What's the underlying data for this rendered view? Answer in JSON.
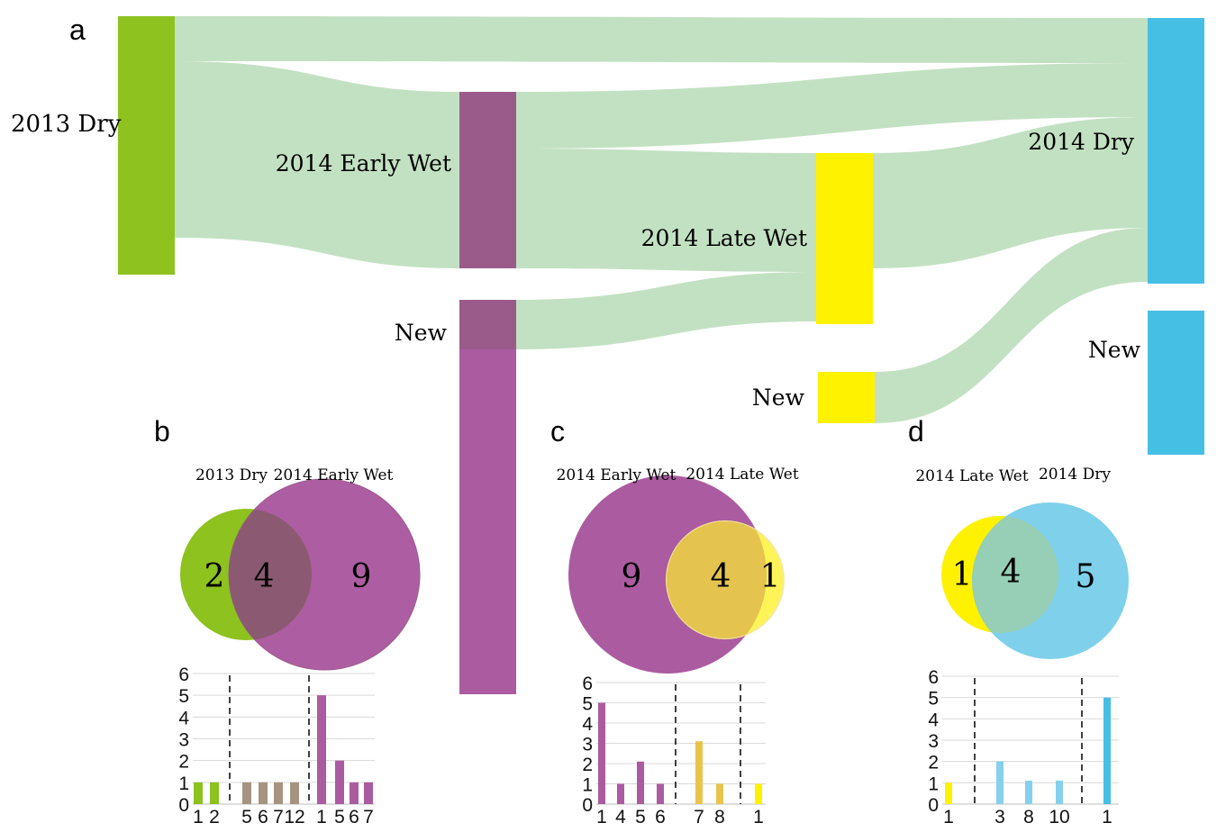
{
  "colors": {
    "flow": "#c2e1c2",
    "dry2013": "#8dc21f",
    "earlywet": "#9a5b8a",
    "earlywet_new": "#ab5ba0",
    "latewet": "#fff200",
    "dry2014": "#45bfe4",
    "tan": "#a69480",
    "gold": "#e8c44c",
    "sky": "#85d0ec",
    "grid": "#d9d9d9"
  },
  "panel_a": {
    "letter": "a",
    "nodes": {
      "dry2013": "2013 Dry",
      "earlywet": "2014 Early Wet",
      "earlywet_new": "New",
      "latewet": "2014 Late Wet",
      "latewet_new": "New",
      "dry2014": "2014 Dry",
      "dry2014_new": "New"
    }
  },
  "panel_b": {
    "letter": "b",
    "left_label": "2013 Dry",
    "right_label": "2014 Early Wet",
    "left_only": "2",
    "shared": "4",
    "right_only": "9"
  },
  "panel_c": {
    "letter": "c",
    "left_label": "2014 Early Wet",
    "right_label": "2014 Late Wet",
    "left_only": "9",
    "shared": "4",
    "right_only": "1"
  },
  "panel_d": {
    "letter": "d",
    "left_label": "2014 Late Wet",
    "right_label": "2014 Dry",
    "left_only": "1",
    "shared": "4",
    "right_only": "5"
  },
  "chart_data": [
    {
      "type": "bar",
      "panel": "b",
      "ylim": [
        0,
        6
      ],
      "yticks": [
        "0",
        "1",
        "2",
        "3",
        "4",
        "5",
        "6"
      ],
      "categories": [
        "1",
        "2",
        "5",
        "6",
        "7",
        "12",
        "1",
        "5",
        "6",
        "7"
      ],
      "values": [
        1,
        1,
        1,
        1,
        1,
        1,
        5,
        2,
        1,
        1
      ],
      "groups": [
        "dry2013",
        "dry2013",
        "tan",
        "tan",
        "tan",
        "tan",
        "earlywet_new",
        "earlywet_new",
        "earlywet_new",
        "earlywet_new"
      ],
      "dividers_after": [
        1,
        5
      ]
    },
    {
      "type": "bar",
      "panel": "c",
      "ylim": [
        0,
        6
      ],
      "yticks": [
        "0",
        "1",
        "2",
        "3",
        "4",
        "5",
        "6"
      ],
      "categories": [
        "1",
        "4",
        "5",
        "6",
        "7",
        "8",
        "1"
      ],
      "values": [
        5,
        1,
        2.1,
        1,
        3.1,
        1,
        1
      ],
      "groups": [
        "earlywet_new",
        "earlywet_new",
        "earlywet_new",
        "earlywet_new",
        "gold",
        "gold",
        "latewet"
      ],
      "dividers_after": [
        3,
        5
      ]
    },
    {
      "type": "bar",
      "panel": "d",
      "ylim": [
        0,
        6
      ],
      "yticks": [
        "0",
        "1",
        "2",
        "3",
        "4",
        "5",
        "6"
      ],
      "categories": [
        "1",
        "3",
        "8",
        "10",
        "1"
      ],
      "values": [
        1,
        2,
        1.1,
        1.1,
        5
      ],
      "groups": [
        "latewet",
        "sky",
        "sky",
        "sky",
        "dry2014"
      ],
      "dividers_after": [
        0,
        3
      ]
    }
  ]
}
